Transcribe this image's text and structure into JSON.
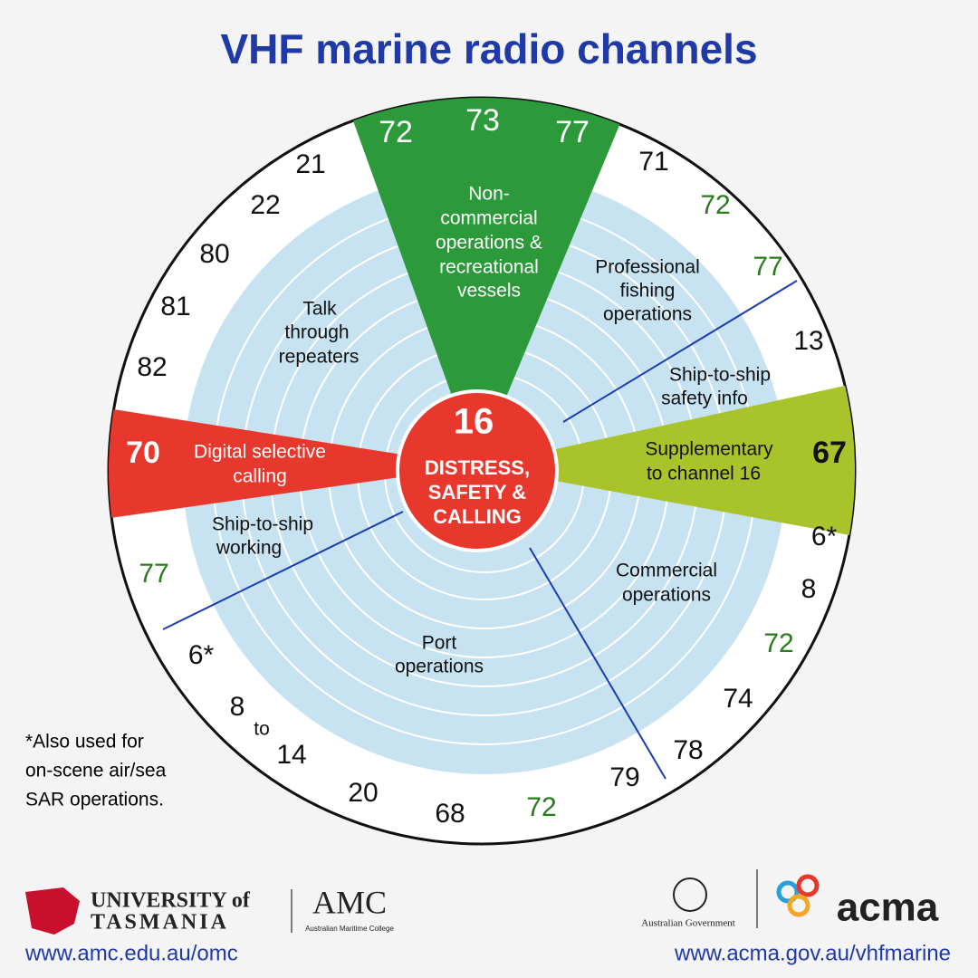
{
  "title": "VHF marine radio channels",
  "center": {
    "channel": "16",
    "lines": [
      "DISTRESS,",
      "SAFETY &",
      "CALLING"
    ]
  },
  "sectors": {
    "non_commercial": {
      "channels": [
        "72",
        "73",
        "77"
      ],
      "label": [
        "Non-",
        "commercial",
        "operations &",
        "recreational",
        "vessels"
      ]
    },
    "professional_fishing": {
      "channels": [
        "71",
        "72",
        "77"
      ],
      "label": [
        "Professional",
        "fishing",
        "operations"
      ]
    },
    "ship_safety": {
      "channels": [
        "13"
      ],
      "label": [
        "Ship-to-ship",
        "safety info"
      ]
    },
    "supplementary": {
      "channels": [
        "67"
      ],
      "label": [
        "Supplementary",
        "to channel 16"
      ]
    },
    "commercial": {
      "channels": [
        "6*",
        "8",
        "72",
        "74",
        "78"
      ],
      "label": [
        "Commercial",
        "operations"
      ]
    },
    "port": {
      "channels": [
        "79",
        "72",
        "68",
        "20",
        "8",
        "to",
        "14",
        "6*"
      ],
      "label": [
        "Port",
        "operations"
      ]
    },
    "ship_working": {
      "channels": [
        "77"
      ],
      "label": [
        "Ship-to-ship",
        "working"
      ]
    },
    "dsc": {
      "channels": [
        "70"
      ],
      "label": [
        "Digital selective",
        "calling"
      ]
    },
    "repeaters": {
      "channels": [
        "21",
        "22",
        "80",
        "81",
        "82"
      ],
      "label": [
        "Talk",
        "through",
        "repeaters"
      ]
    }
  },
  "footnote": [
    "*Also used for",
    "on-scene air/sea",
    "SAR operations."
  ],
  "footer": {
    "utas_top": "UNIVERSITY of",
    "utas_bottom": "TASMANIA",
    "amc": "AMC",
    "amc_sub": "Australian Maritime College",
    "amc_url": "www.amc.edu.au/omc",
    "gov": "Australian Government",
    "acma": "acma",
    "acma_url": "www.acma.gov.au/vhfmarine"
  }
}
